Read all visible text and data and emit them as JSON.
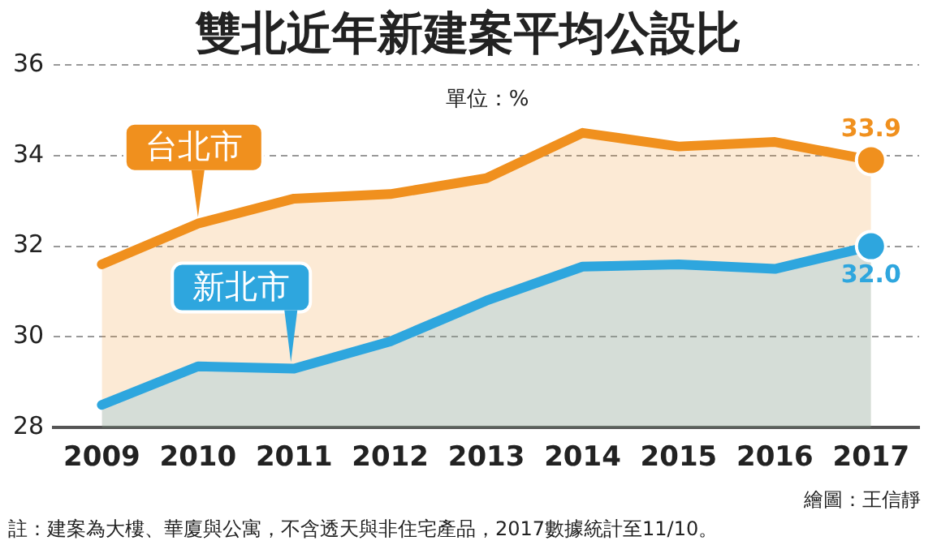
{
  "chart_data": {
    "type": "area",
    "title": "雙北近年新建案平均公設比",
    "subtitle": "單位：%",
    "categories": [
      "2009",
      "2010",
      "2011",
      "2012",
      "2013",
      "2014",
      "2015",
      "2016",
      "2017"
    ],
    "series": [
      {
        "name": "台北市",
        "color": "#f0901e",
        "values": [
          31.6,
          32.5,
          33.05,
          33.15,
          33.5,
          34.5,
          34.2,
          34.3,
          33.9
        ],
        "value_labels": [
          null,
          null,
          null,
          null,
          null,
          null,
          null,
          null,
          "33.9"
        ]
      },
      {
        "name": "新北市",
        "color": "#2ea6de",
        "values": [
          28.5,
          29.35,
          29.3,
          29.9,
          30.8,
          31.55,
          31.6,
          31.5,
          32.0
        ],
        "value_labels": [
          null,
          null,
          null,
          null,
          null,
          null,
          null,
          null,
          "32.0"
        ]
      }
    ],
    "ylim": [
      28,
      36
    ],
    "yticks": [
      28,
      30,
      32,
      34,
      36
    ],
    "grid": "y",
    "legend": false,
    "annotations": [
      "註：建案為大樓、華廈與公寓，不含透天與非住宅產品，2017數據統計至11/10。",
      "繪圖：王信靜"
    ]
  }
}
